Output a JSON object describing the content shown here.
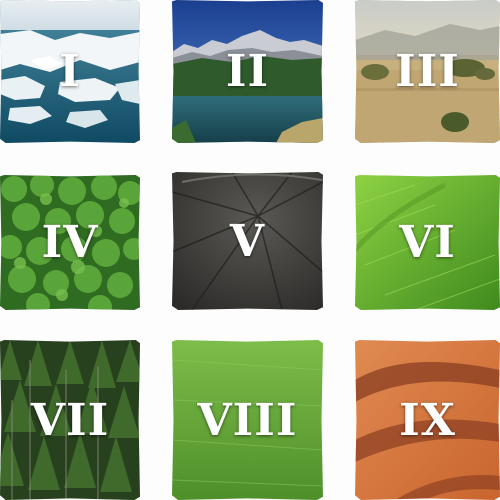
{
  "tiles": [
    {
      "numeral": "I",
      "scene": "polar-ice",
      "accent": "#2f6f86"
    },
    {
      "numeral": "II",
      "scene": "mountain-lake",
      "accent": "#2c63b8"
    },
    {
      "numeral": "III",
      "scene": "savanna",
      "accent": "#b9a57a"
    },
    {
      "numeral": "IV",
      "scene": "forest-canopy",
      "accent": "#3f8a2c"
    },
    {
      "numeral": "V",
      "scene": "bare-ground",
      "accent": "#4a4a48"
    },
    {
      "numeral": "VI",
      "scene": "grass-field",
      "accent": "#6fbf2e"
    },
    {
      "numeral": "VII",
      "scene": "conifer-forest",
      "accent": "#2f4a22"
    },
    {
      "numeral": "VIII",
      "scene": "meadow",
      "accent": "#6aa83a"
    },
    {
      "numeral": "IX",
      "scene": "desert-dunes",
      "accent": "#d0703a"
    }
  ]
}
